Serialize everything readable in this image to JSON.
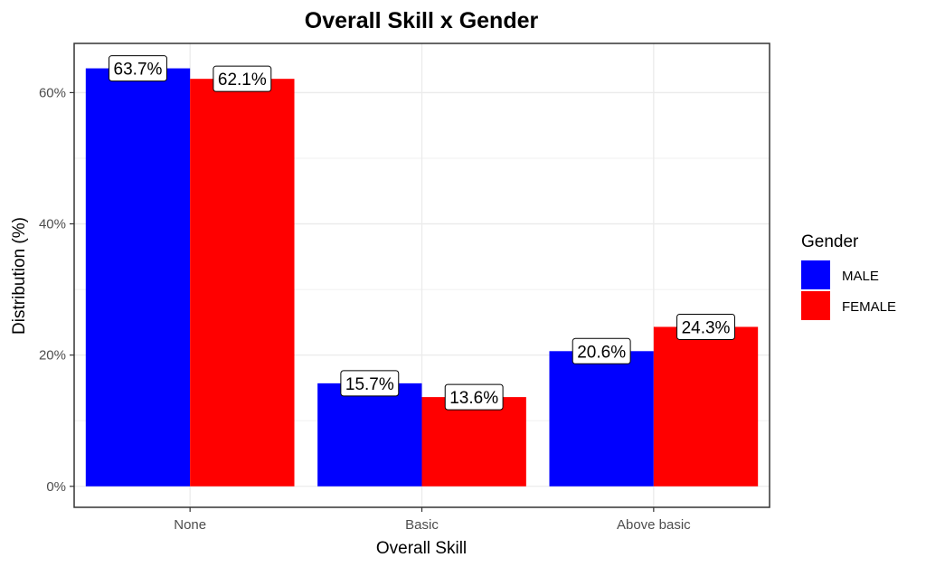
{
  "chart_data": {
    "type": "bar",
    "title": "Overall Skill x Gender",
    "xlabel": "Overall Skill",
    "ylabel": "Distribution (%)",
    "categories": [
      "None",
      "Basic",
      "Above basic"
    ],
    "ylim": [
      -3.2,
      67.5
    ],
    "yticks": [
      0,
      20,
      40,
      60
    ],
    "ytick_labels": [
      "0%",
      "20%",
      "40%",
      "60%"
    ],
    "grid": true,
    "legend": {
      "title": "Gender",
      "position": "right"
    },
    "series": [
      {
        "name": "MALE",
        "color": "#0000ff",
        "values": [
          63.7,
          15.7,
          20.6
        ],
        "labels": [
          "63.7%",
          "15.7%",
          "20.6%"
        ]
      },
      {
        "name": "FEMALE",
        "color": "#ff0000",
        "values": [
          62.1,
          13.6,
          24.3
        ],
        "labels": [
          "62.1%",
          "13.6%",
          "24.3%"
        ]
      }
    ]
  }
}
